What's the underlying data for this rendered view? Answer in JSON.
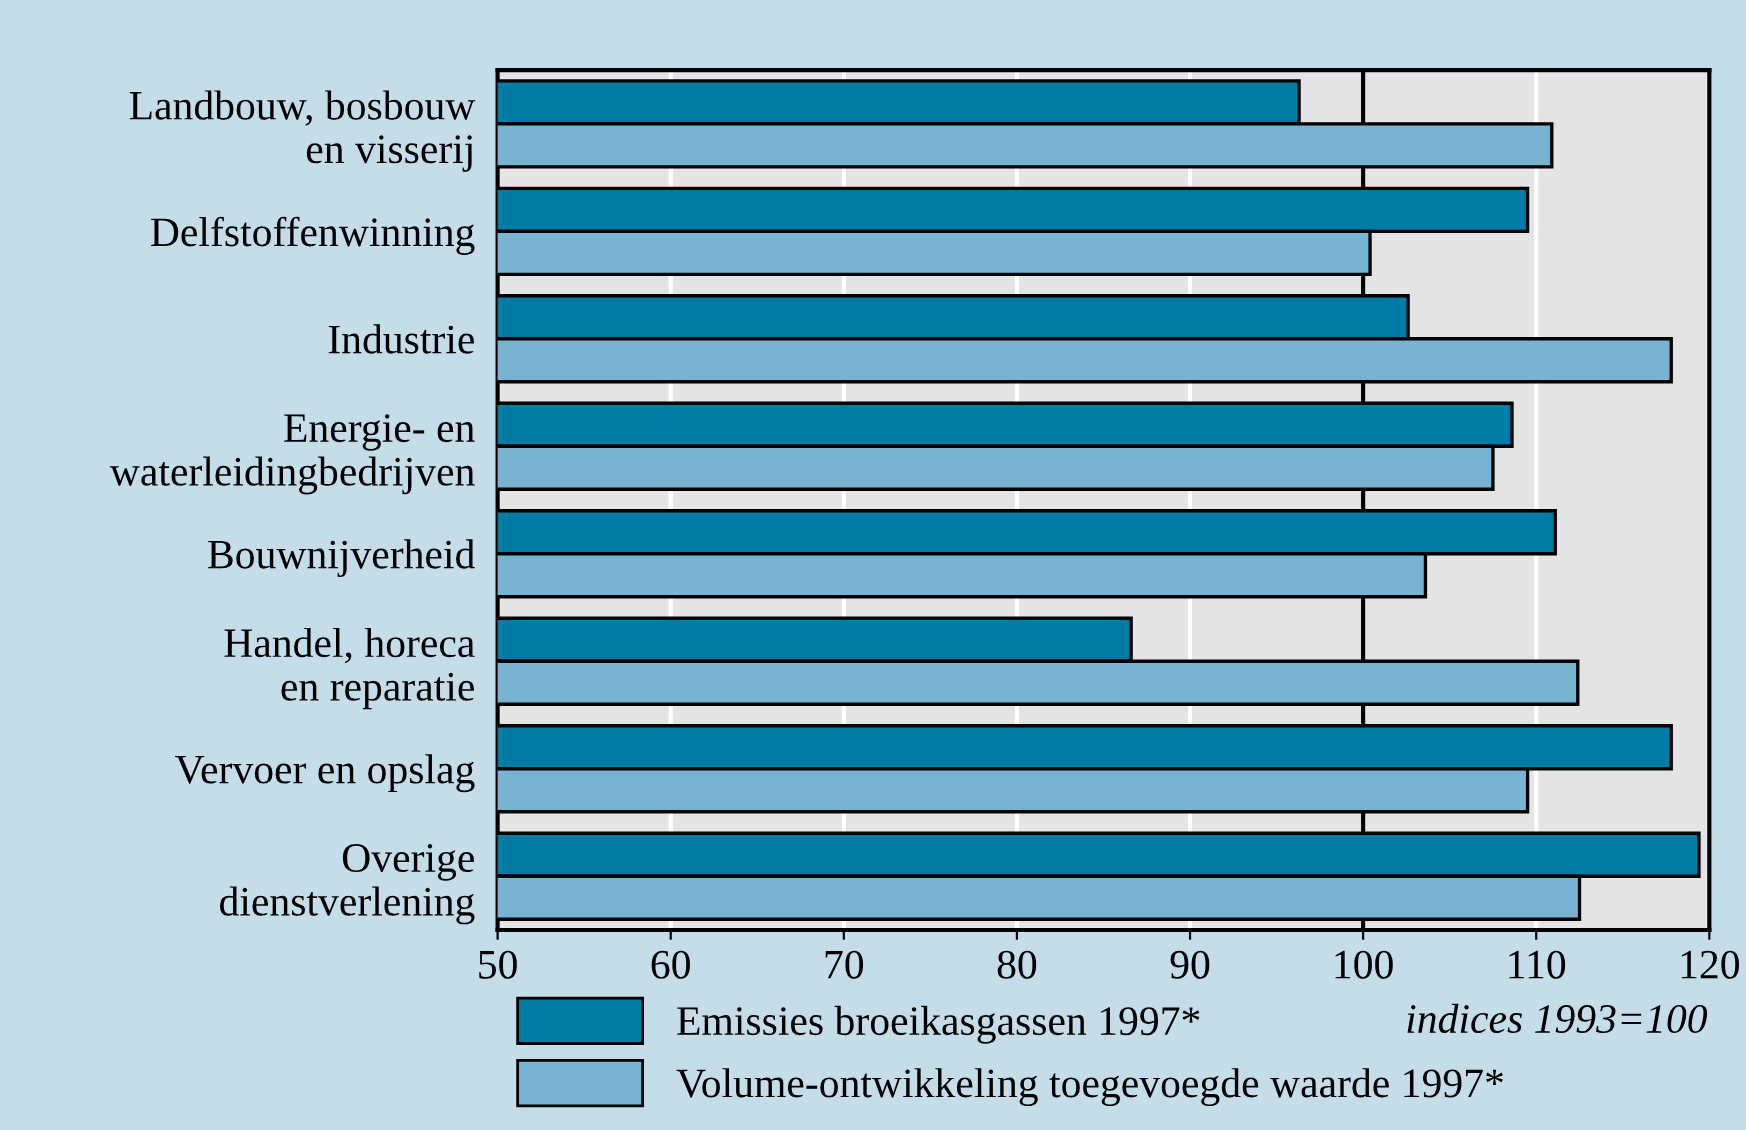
{
  "chart_data": {
    "type": "bar",
    "orientation": "horizontal",
    "categories": [
      "Landbouw, bosbouw\nen visserij",
      "Delfstoffenwinning",
      "Industrie",
      "Energie- en\nwaterleidingbedrijven",
      "Bouwnijverheid",
      "Handel, horeca\nen reparatie",
      "Vervoer en opslag",
      "Overige\ndienstverlening"
    ],
    "series": [
      {
        "name": "Emissies broeikasgassen 1997*",
        "color": "#007ba5",
        "values": [
          96.3,
          109.5,
          102.6,
          108.6,
          111.1,
          86.6,
          117.8,
          119.4
        ]
      },
      {
        "name": "Volume-ontwikkeling toegevoegde waarde 1997*",
        "color": "#78b4d2",
        "values": [
          110.9,
          100.4,
          117.8,
          107.5,
          103.6,
          112.4,
          109.5,
          112.5
        ]
      }
    ],
    "xlim": [
      50,
      120
    ],
    "xticks": [
      50,
      60,
      70,
      80,
      90,
      100,
      110,
      120
    ],
    "ref_lines": [
      {
        "axis": "x",
        "value": 100,
        "color": "#000000"
      }
    ],
    "grid": "x",
    "legend": "bottom left",
    "annotations": [
      "indices 1993=100"
    ]
  }
}
